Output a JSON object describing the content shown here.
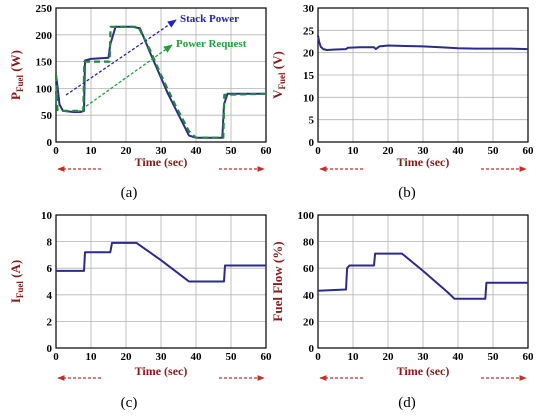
{
  "colors": {
    "frame": "#000000",
    "grid": "#b3b3b3",
    "axis_label": "#8b1a1a",
    "series_stack": "#2b2b8c",
    "series_request": "#1f8a3a",
    "arrow_blue": "#2222c0",
    "arrow_green": "#1fa03a",
    "time_arrow": "#c0302a"
  },
  "chart_data": [
    {
      "panel": "(a)",
      "type": "line",
      "xlabel": "Time (sec)",
      "ylabel_main": "P",
      "ylabel_sub": "Fuel",
      "ylabel_unit": "(W)",
      "xlim": [
        0,
        60
      ],
      "ylim": [
        0,
        250
      ],
      "xticks": [
        "0",
        "10",
        "20",
        "30",
        "40",
        "50",
        "60"
      ],
      "yticks": [
        "0",
        "50",
        "100",
        "150",
        "200",
        "250"
      ],
      "annotations": [
        "Stack Power",
        "Power Request"
      ],
      "series": [
        {
          "name": "Stack Power",
          "x": [
            0,
            0.4,
            1,
            2,
            5,
            7,
            8,
            8.3,
            10,
            15,
            15.5,
            17,
            22,
            24,
            27,
            32,
            37,
            38,
            40,
            45,
            47.5,
            48,
            49,
            60
          ],
          "y": [
            125,
            105,
            70,
            58,
            56,
            56,
            58,
            152,
            155,
            157,
            182,
            215,
            215,
            212,
            165,
            90,
            25,
            12,
            8,
            8,
            8,
            70,
            90,
            90
          ]
        },
        {
          "name": "Power Request",
          "x": [
            0,
            0.4,
            1,
            7.8,
            8.1,
            15.3,
            15.6,
            23.5,
            27,
            30,
            34,
            38,
            40,
            47.8,
            48.1,
            60
          ],
          "y": [
            125,
            60,
            58,
            58,
            150,
            150,
            215,
            215,
            170,
            125,
            70,
            20,
            8,
            8,
            88,
            90
          ]
        }
      ]
    },
    {
      "panel": "(b)",
      "type": "line",
      "xlabel": "Time (sec)",
      "ylabel_main": "V",
      "ylabel_sub": "Fuel",
      "ylabel_unit": "(V)",
      "xlim": [
        0,
        60
      ],
      "ylim": [
        0,
        30
      ],
      "xticks": [
        "0",
        "10",
        "20",
        "30",
        "40",
        "50",
        "60"
      ],
      "yticks": [
        "0",
        "5",
        "10",
        "15",
        "20",
        "25",
        "30"
      ],
      "series": [
        {
          "x": [
            0,
            0.3,
            0.8,
            1.5,
            2.5,
            5,
            8,
            8.5,
            12,
            16,
            16.5,
            17,
            17.5,
            20,
            25,
            30,
            35,
            40,
            45,
            50,
            55,
            60
          ],
          "y": [
            23.8,
            22.5,
            21.3,
            20.8,
            20.6,
            20.7,
            20.8,
            21.1,
            21.2,
            21.2,
            20.8,
            21.1,
            21.4,
            21.6,
            21.5,
            21.4,
            21.2,
            21.0,
            20.9,
            20.9,
            20.9,
            20.8
          ]
        }
      ]
    },
    {
      "panel": "(c)",
      "type": "line",
      "xlabel": "Time (sec)",
      "ylabel_main": "I",
      "ylabel_sub": "Fuel",
      "ylabel_unit": "(A)",
      "xlim": [
        0,
        60
      ],
      "ylim": [
        0,
        10
      ],
      "xticks": [
        "0",
        "10",
        "20",
        "30",
        "40",
        "50",
        "60"
      ],
      "yticks": [
        "0",
        "2",
        "4",
        "6",
        "8",
        "10"
      ],
      "series": [
        {
          "x": [
            0,
            8,
            8.3,
            15.5,
            16,
            23,
            30,
            37,
            38,
            48,
            48.3,
            60
          ],
          "y": [
            5.8,
            5.8,
            7.2,
            7.2,
            7.9,
            7.9,
            6.6,
            5.2,
            5.0,
            5.0,
            6.2,
            6.2
          ]
        }
      ]
    },
    {
      "panel": "(d)",
      "type": "line",
      "xlabel": "Time (sec)",
      "ylabel_main": "Fuel Flow (%)",
      "ylabel_sub": "",
      "ylabel_unit": "",
      "xlim": [
        0,
        60
      ],
      "ylim": [
        0,
        100
      ],
      "xticks": [
        "0",
        "10",
        "20",
        "30",
        "40",
        "50",
        "60"
      ],
      "yticks": [
        "0",
        "20",
        "40",
        "60",
        "80",
        "100"
      ],
      "series": [
        {
          "x": [
            0,
            8,
            8.3,
            9,
            16,
            16.3,
            24,
            30,
            37,
            39,
            47.8,
            48.1,
            60
          ],
          "y": [
            43,
            44,
            60,
            62,
            62,
            71,
            71,
            58,
            42,
            37,
            37,
            49,
            49
          ]
        }
      ]
    }
  ]
}
